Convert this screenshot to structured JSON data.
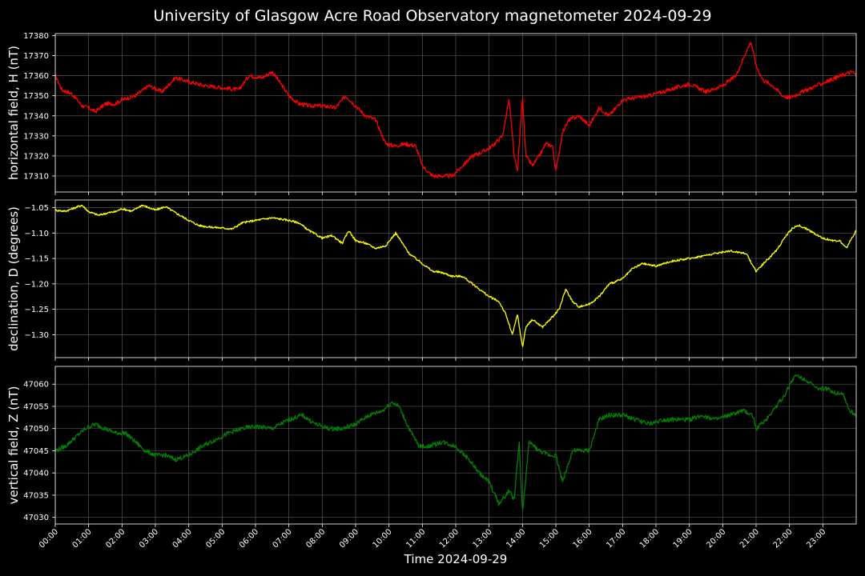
{
  "chart_data": {
    "type": "line",
    "title": "University of Glasgow Acre Road Observatory magnetometer 2024-09-29",
    "xlabel": "Time 2024-09-29",
    "x_ticks": [
      "00:00",
      "01:00",
      "02:00",
      "03:00",
      "04:00",
      "05:00",
      "06:00",
      "07:00",
      "08:00",
      "09:00",
      "10:00",
      "11:00",
      "12:00",
      "13:00",
      "14:00",
      "15:00",
      "16:00",
      "17:00",
      "18:00",
      "19:00",
      "20:00",
      "21:00",
      "22:00",
      "23:00"
    ],
    "xlim_hours": [
      0,
      24
    ],
    "grid": true,
    "panels": [
      {
        "ylabel": "horizontal field, H (nT)",
        "color": "#ff0000",
        "ylim": [
          17302,
          17381
        ],
        "y_ticks": [
          17310,
          17320,
          17330,
          17340,
          17350,
          17360,
          17370,
          17380
        ],
        "decimals": 0,
        "noise": 1.0,
        "x": [
          0,
          0.2,
          0.5,
          0.8,
          1.0,
          1.2,
          1.5,
          1.8,
          2.0,
          2.4,
          2.8,
          3.2,
          3.6,
          4.0,
          4.5,
          5.0,
          5.5,
          5.8,
          6.2,
          6.5,
          6.8,
          7.0,
          7.3,
          7.6,
          8.0,
          8.4,
          8.7,
          9.0,
          9.3,
          9.6,
          9.9,
          10.2,
          10.5,
          10.8,
          11.0,
          11.3,
          11.6,
          11.9,
          12.2,
          12.5,
          12.8,
          13.1,
          13.4,
          13.6,
          13.75,
          13.85,
          14.0,
          14.1,
          14.3,
          14.5,
          14.7,
          14.9,
          15.0,
          15.2,
          15.4,
          15.7,
          16.0,
          16.3,
          16.6,
          17.0,
          17.4,
          17.8,
          18.2,
          18.6,
          19.0,
          19.5,
          20.0,
          20.4,
          20.7,
          20.85,
          21.0,
          21.2,
          21.5,
          21.8,
          22.0,
          22.4,
          22.8,
          23.1,
          23.4,
          23.7,
          23.9,
          24.0
        ],
        "values": [
          17360,
          17353,
          17351,
          17345,
          17344,
          17342,
          17346,
          17346,
          17348,
          17350,
          17355,
          17352,
          17359,
          17357,
          17355,
          17354,
          17353,
          17360,
          17359,
          17362,
          17355,
          17350,
          17346,
          17345,
          17345,
          17344,
          17350,
          17345,
          17340,
          17338,
          17326,
          17325,
          17326,
          17325,
          17315,
          17310,
          17310,
          17310,
          17315,
          17320,
          17322,
          17325,
          17330,
          17348,
          17320,
          17312,
          17350,
          17320,
          17315,
          17320,
          17326,
          17325,
          17312,
          17332,
          17338,
          17340,
          17335,
          17344,
          17340,
          17348,
          17349,
          17350,
          17352,
          17354,
          17356,
          17352,
          17355,
          17360,
          17372,
          17377,
          17365,
          17358,
          17355,
          17350,
          17349,
          17352,
          17355,
          17357,
          17359,
          17361,
          17362,
          17360
        ]
      },
      {
        "ylabel": "declination, D (degrees)",
        "color": "#ffff00",
        "ylim": [
          -1.345,
          -1.035
        ],
        "y_ticks": [
          -1.3,
          -1.25,
          -1.2,
          -1.15,
          -1.1,
          -1.05
        ],
        "decimals": 2,
        "noise": 0.002,
        "x": [
          0,
          0.3,
          0.6,
          0.8,
          1.0,
          1.3,
          1.6,
          1.8,
          2.0,
          2.3,
          2.6,
          2.8,
          3.0,
          3.3,
          3.6,
          4.0,
          4.3,
          4.6,
          5.0,
          5.3,
          5.6,
          6.0,
          6.5,
          7.0,
          7.3,
          7.6,
          8.0,
          8.3,
          8.6,
          8.8,
          9.0,
          9.3,
          9.6,
          9.9,
          10.2,
          10.6,
          11.0,
          11.3,
          11.6,
          11.9,
          12.2,
          12.5,
          12.8,
          13.0,
          13.3,
          13.5,
          13.7,
          13.85,
          14.0,
          14.1,
          14.3,
          14.6,
          14.9,
          15.1,
          15.3,
          15.5,
          15.7,
          16.0,
          16.3,
          16.6,
          17.0,
          17.3,
          17.6,
          18.0,
          18.5,
          19.0,
          19.4,
          19.8,
          20.2,
          20.7,
          21.0,
          21.3,
          21.6,
          21.9,
          22.1,
          22.3,
          22.6,
          23.0,
          23.3,
          23.5,
          23.7,
          24.0
        ],
        "values": [
          -1.055,
          -1.057,
          -1.05,
          -1.045,
          -1.058,
          -1.065,
          -1.06,
          -1.058,
          -1.052,
          -1.057,
          -1.045,
          -1.05,
          -1.055,
          -1.048,
          -1.06,
          -1.075,
          -1.085,
          -1.088,
          -1.09,
          -1.092,
          -1.08,
          -1.075,
          -1.07,
          -1.075,
          -1.08,
          -1.095,
          -1.11,
          -1.105,
          -1.12,
          -1.095,
          -1.115,
          -1.12,
          -1.13,
          -1.125,
          -1.1,
          -1.14,
          -1.16,
          -1.175,
          -1.178,
          -1.185,
          -1.185,
          -1.2,
          -1.215,
          -1.225,
          -1.235,
          -1.26,
          -1.3,
          -1.26,
          -1.325,
          -1.285,
          -1.27,
          -1.285,
          -1.265,
          -1.25,
          -1.21,
          -1.235,
          -1.245,
          -1.24,
          -1.225,
          -1.2,
          -1.19,
          -1.17,
          -1.16,
          -1.165,
          -1.155,
          -1.15,
          -1.145,
          -1.14,
          -1.135,
          -1.14,
          -1.175,
          -1.155,
          -1.135,
          -1.105,
          -1.09,
          -1.085,
          -1.095,
          -1.11,
          -1.115,
          -1.115,
          -1.13,
          -1.095
        ]
      },
      {
        "ylabel": "vertical field, Z (nT)",
        "color": "#008000",
        "ylim": [
          47028.5,
          47064
        ],
        "y_ticks": [
          47030,
          47035,
          47040,
          47045,
          47050,
          47055,
          47060
        ],
        "decimals": 0,
        "noise": 0.5,
        "x": [
          0,
          0.3,
          0.6,
          0.9,
          1.2,
          1.5,
          1.8,
          2.1,
          2.4,
          2.7,
          3.0,
          3.3,
          3.6,
          4.0,
          4.4,
          4.8,
          5.2,
          5.6,
          6.0,
          6.5,
          7.0,
          7.4,
          7.8,
          8.2,
          8.6,
          9.0,
          9.4,
          9.8,
          10.1,
          10.3,
          10.6,
          10.9,
          11.2,
          11.6,
          12.0,
          12.4,
          12.7,
          13.0,
          13.3,
          13.6,
          13.75,
          13.9,
          14.0,
          14.2,
          14.5,
          14.8,
          15.0,
          15.2,
          15.5,
          15.8,
          16.0,
          16.3,
          16.6,
          17.0,
          17.4,
          17.8,
          18.2,
          18.6,
          19.0,
          19.4,
          19.8,
          20.2,
          20.6,
          20.9,
          21.0,
          21.3,
          21.6,
          21.9,
          22.0,
          22.2,
          22.5,
          22.8,
          23.1,
          23.4,
          23.6,
          23.8,
          24.0
        ],
        "values": [
          47045,
          47046,
          47048,
          47050,
          47051,
          47050,
          47049,
          47049,
          47047,
          47045,
          47044,
          47044,
          47043,
          47044,
          47046,
          47047.5,
          47049,
          47050,
          47050.5,
          47050,
          47052,
          47053,
          47051,
          47050,
          47050,
          47051,
          47053,
          47054,
          47056,
          47055,
          47050,
          47046,
          47046,
          47047,
          47046,
          47043,
          47040,
          47038,
          47033,
          47036,
          47034,
          47047,
          47031,
          47047,
          47045,
          47044,
          47044,
          47038,
          47045,
          47045,
          47045,
          47052,
          47053,
          47053,
          47052,
          47051,
          47052,
          47052,
          47052,
          47053,
          47052,
          47053,
          47054,
          47053,
          47050,
          47052,
          47055,
          47058,
          47060,
          47062,
          47061,
          47059,
          47059,
          47058,
          47058,
          47054,
          47053
        ]
      }
    ]
  }
}
